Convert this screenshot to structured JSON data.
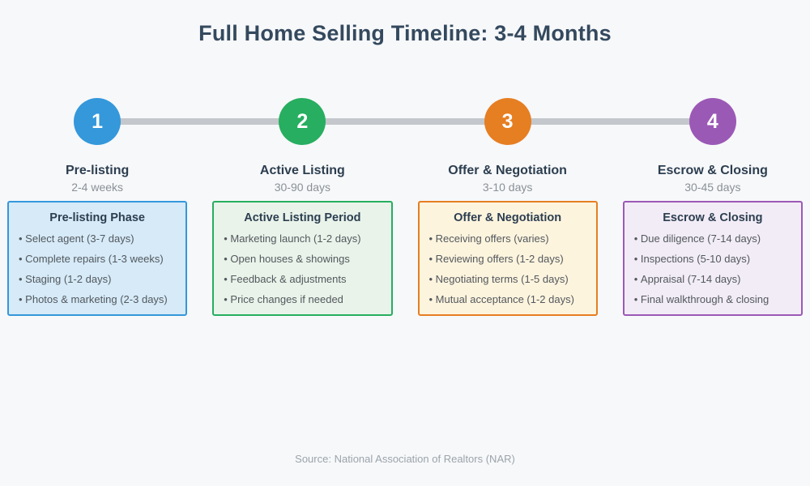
{
  "title": "Full Home Selling Timeline: 3-4 Months",
  "source_note": "Source: National Association of Realtors (NAR)",
  "colors": {
    "background": "#f7f8fa",
    "title_text": "#34495e",
    "timeline_line": "#c4c8cc",
    "phase_name_text": "#2c3e50",
    "duration_text": "#8a9096",
    "item_text": "#53585d",
    "phase_1_accent": "#3498db",
    "phase_1_card_bg": "#d6eaf8",
    "phase_2_accent": "#27ae60",
    "phase_2_card_bg": "#e9f3ea",
    "phase_3_accent": "#e67e22",
    "phase_3_card_bg": "#fdf4de",
    "phase_4_accent": "#9b59b6",
    "phase_4_card_bg": "#f2ecf6"
  },
  "phases": [
    {
      "number": "1",
      "name": "Pre-listing",
      "duration": "2-4 weeks",
      "card_title": "Pre-listing Phase",
      "items": [
        "Select agent (3-7 days)",
        "Complete repairs (1-3 weeks)",
        "Staging (1-2 days)",
        "Photos & marketing (2-3 days)"
      ]
    },
    {
      "number": "2",
      "name": "Active Listing",
      "duration": "30-90 days",
      "card_title": "Active Listing Period",
      "items": [
        "Marketing launch (1-2 days)",
        "Open houses & showings",
        "Feedback & adjustments",
        "Price changes if needed"
      ]
    },
    {
      "number": "3",
      "name": "Offer & Negotiation",
      "duration": "3-10 days",
      "card_title": "Offer & Negotiation",
      "items": [
        "Receiving offers (varies)",
        "Reviewing offers (1-2 days)",
        "Negotiating terms (1-5 days)",
        "Mutual acceptance (1-2 days)"
      ]
    },
    {
      "number": "4",
      "name": "Escrow & Closing",
      "duration": "30-45 days",
      "card_title": "Escrow & Closing",
      "items": [
        "Due diligence (7-14 days)",
        "Inspections (5-10 days)",
        "Appraisal (7-14 days)",
        "Final walkthrough & closing"
      ]
    }
  ]
}
